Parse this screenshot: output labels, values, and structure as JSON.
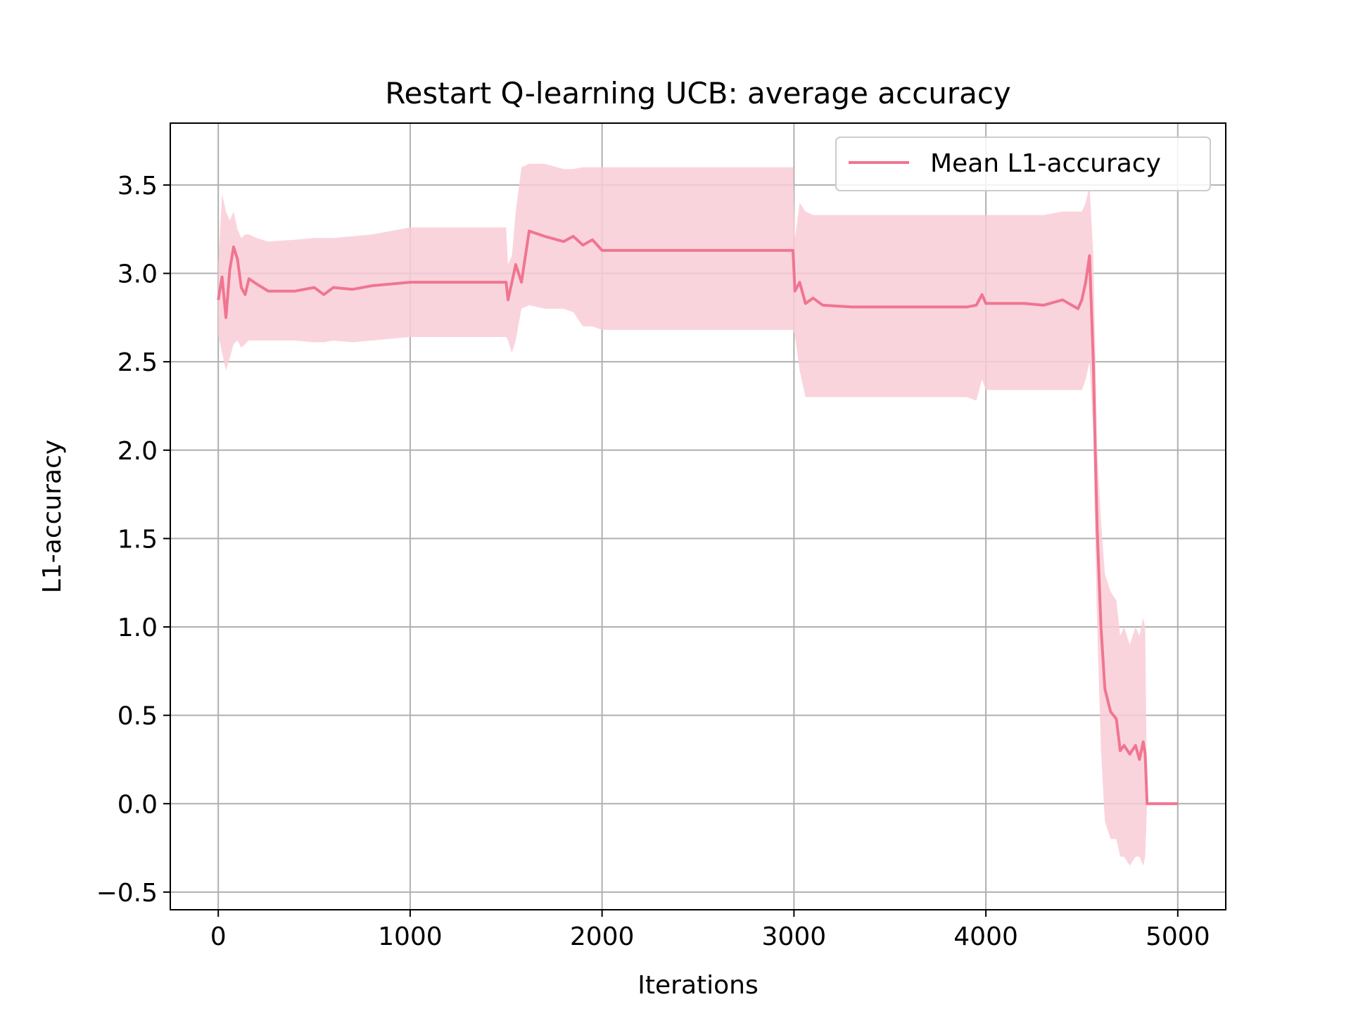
{
  "chart_data": {
    "type": "line",
    "title": "Restart Q-learning UCB: average accuracy",
    "xlabel": "Iterations",
    "ylabel": "L1-accuracy",
    "xlim": [
      -250,
      5250
    ],
    "ylim": [
      -0.6,
      3.85
    ],
    "xticks": [
      0,
      1000,
      2000,
      3000,
      4000,
      5000
    ],
    "xtick_labels": [
      "0",
      "1000",
      "2000",
      "3000",
      "4000",
      "5000"
    ],
    "yticks": [
      -0.5,
      0.0,
      0.5,
      1.0,
      1.5,
      2.0,
      2.5,
      3.0,
      3.5
    ],
    "ytick_labels": [
      "−0.5",
      "0.0",
      "0.5",
      "1.0",
      "1.5",
      "2.0",
      "2.5",
      "3.0",
      "3.5"
    ],
    "grid": true,
    "legend": {
      "position": "upper right",
      "entries": [
        "Mean L1-accuracy"
      ]
    },
    "colors": {
      "line": "#f07590",
      "band": "#f9cdd7",
      "grid": "#b0b0b0"
    },
    "series": [
      {
        "name": "Mean L1-accuracy",
        "x": [
          0,
          20,
          40,
          60,
          80,
          100,
          120,
          140,
          160,
          200,
          260,
          400,
          500,
          550,
          600,
          700,
          800,
          1000,
          1500,
          1510,
          1530,
          1550,
          1580,
          1620,
          1700,
          1800,
          1850,
          1900,
          1950,
          2000,
          2500,
          2995,
          3005,
          3030,
          3060,
          3100,
          3150,
          3300,
          3600,
          3900,
          3950,
          3980,
          4000,
          4200,
          4300,
          4400,
          4480,
          4500,
          4520,
          4540,
          4560,
          4570,
          4580,
          4600,
          4620,
          4650,
          4680,
          4700,
          4720,
          4750,
          4780,
          4800,
          4820,
          4830,
          4840,
          4900,
          5000
        ],
        "y": [
          2.85,
          2.98,
          2.75,
          3.02,
          3.15,
          3.08,
          2.92,
          2.88,
          2.97,
          2.94,
          2.9,
          2.9,
          2.92,
          2.88,
          2.92,
          2.91,
          2.93,
          2.95,
          2.95,
          2.85,
          2.95,
          3.05,
          2.95,
          3.24,
          3.21,
          3.18,
          3.21,
          3.16,
          3.19,
          3.13,
          3.13,
          3.13,
          2.9,
          2.95,
          2.83,
          2.86,
          2.82,
          2.81,
          2.81,
          2.81,
          2.82,
          2.88,
          2.83,
          2.83,
          2.82,
          2.85,
          2.8,
          2.85,
          2.95,
          3.1,
          2.5,
          2.0,
          1.55,
          1.0,
          0.65,
          0.52,
          0.48,
          0.3,
          0.33,
          0.28,
          0.33,
          0.25,
          0.35,
          0.28,
          0.0,
          0.0,
          0.0
        ],
        "lower": [
          2.65,
          2.55,
          2.45,
          2.52,
          2.6,
          2.62,
          2.58,
          2.6,
          2.62,
          2.62,
          2.62,
          2.62,
          2.61,
          2.61,
          2.62,
          2.61,
          2.62,
          2.64,
          2.64,
          2.62,
          2.55,
          2.62,
          2.8,
          2.82,
          2.8,
          2.8,
          2.78,
          2.7,
          2.7,
          2.68,
          2.68,
          2.68,
          2.65,
          2.45,
          2.3,
          2.3,
          2.3,
          2.3,
          2.3,
          2.3,
          2.28,
          2.4,
          2.34,
          2.34,
          2.34,
          2.34,
          2.34,
          2.34,
          2.4,
          2.5,
          2.1,
          1.5,
          1.0,
          0.3,
          -0.1,
          -0.2,
          -0.2,
          -0.3,
          -0.3,
          -0.35,
          -0.3,
          -0.3,
          -0.35,
          -0.3,
          0.0,
          0.0,
          0.0
        ],
        "upper": [
          3.05,
          3.45,
          3.35,
          3.3,
          3.35,
          3.25,
          3.2,
          3.22,
          3.22,
          3.2,
          3.18,
          3.19,
          3.2,
          3.2,
          3.2,
          3.21,
          3.22,
          3.26,
          3.26,
          3.05,
          3.1,
          3.35,
          3.6,
          3.62,
          3.62,
          3.59,
          3.59,
          3.6,
          3.6,
          3.6,
          3.6,
          3.6,
          3.2,
          3.4,
          3.35,
          3.33,
          3.33,
          3.33,
          3.33,
          3.33,
          3.33,
          3.33,
          3.33,
          3.33,
          3.33,
          3.35,
          3.35,
          3.35,
          3.4,
          3.5,
          3.1,
          2.6,
          2.0,
          1.6,
          1.3,
          1.2,
          1.15,
          0.95,
          1.0,
          0.9,
          1.0,
          0.95,
          1.05,
          1.0,
          0.0,
          0.0,
          0.0
        ]
      }
    ]
  }
}
